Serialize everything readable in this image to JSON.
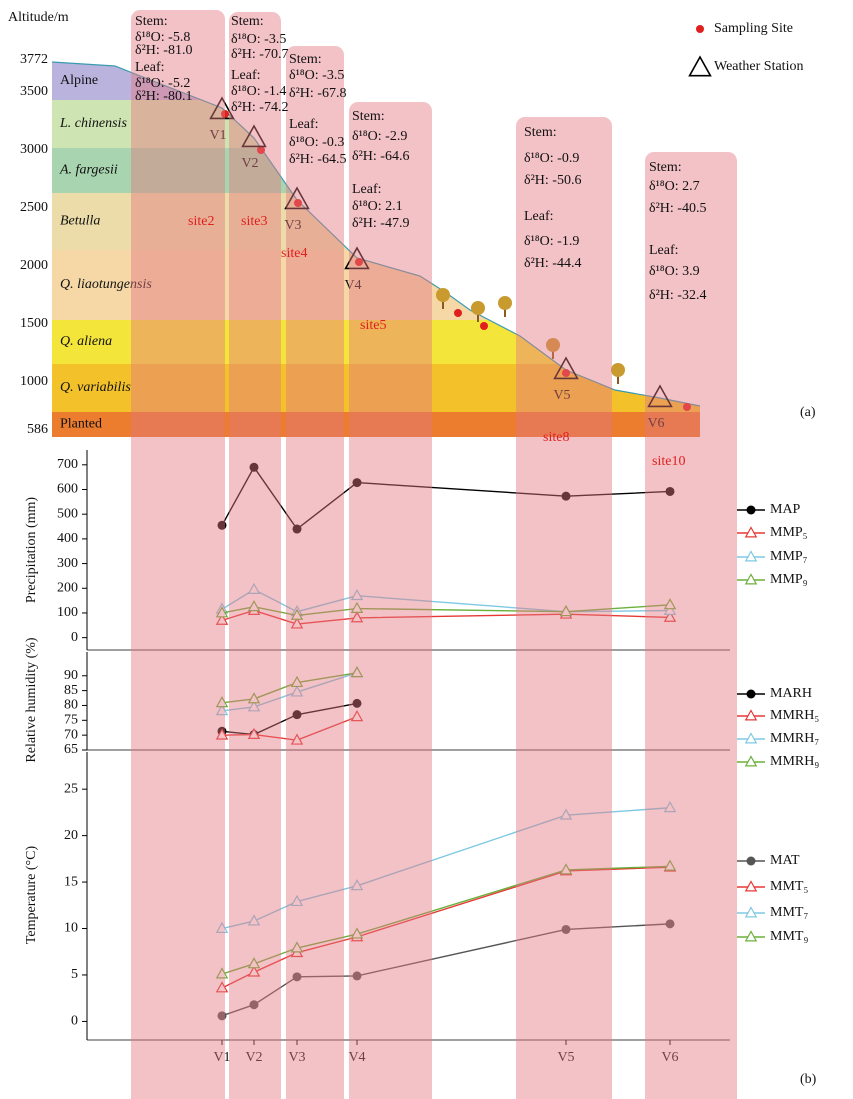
{
  "altitude_panel": {
    "ylabel": "Altitude/m",
    "ylim": [
      586,
      3772
    ],
    "yticks": [
      586,
      1000,
      1500,
      2000,
      2500,
      3000,
      3500,
      3772
    ],
    "zones": [
      {
        "name": "Alpine",
        "color": "#b9b3dd",
        "italic": false
      },
      {
        "name": "L. chinensis",
        "color": "#cfe4b3",
        "italic": true
      },
      {
        "name": "A. fargesii",
        "color": "#a8d5b0",
        "italic": true
      },
      {
        "name": "Betulla",
        "color": "#ecdca9",
        "italic": true
      },
      {
        "name": "Q. liaotungensis",
        "color": "#f5d8a6",
        "italic": true
      },
      {
        "name": "Q. aliena",
        "color": "#f4e53a",
        "italic": true
      },
      {
        "name": "Q. variabilis",
        "color": "#f3c22b",
        "italic": true
      },
      {
        "name": "Planted",
        "color": "#ec7d2f",
        "italic": false
      }
    ],
    "stations": [
      "V1",
      "V2",
      "V3",
      "V4",
      "V5",
      "V6"
    ],
    "sites": [
      "site2",
      "site3",
      "site4",
      "site5",
      "site8",
      "site10"
    ],
    "boxes": [
      {
        "lines": [
          "Stem:",
          "δ¹⁸O: -5.8",
          "δ²H: -81.0",
          "Leaf:",
          "δ¹⁸O: -5.2",
          "δ²H: -80.1"
        ]
      },
      {
        "lines": [
          "Stem:",
          "δ¹⁸O: -3.5",
          "δ²H: -70.7",
          "Leaf:",
          "δ¹⁸O: -1.4",
          "δ²H: -74.2"
        ]
      },
      {
        "lines": [
          "Stem:",
          "δ¹⁸O: -3.5",
          "δ²H: -67.8",
          "Leaf:",
          "δ¹⁸O: -0.3",
          "δ²H: -64.5"
        ]
      },
      {
        "lines": [
          "Stem:",
          "δ¹⁸O: -2.9",
          "δ²H: -64.6",
          "Leaf:",
          "δ¹⁸O: 2.1",
          "δ²H: -47.9"
        ]
      },
      {
        "lines": [
          "Stem:",
          "δ¹⁸O: -0.9",
          "δ²H: -50.6",
          "Leaf:",
          "δ¹⁸O: -1.9",
          "δ²H: -44.4"
        ]
      },
      {
        "lines": [
          "Stem:",
          "δ¹⁸O: 2.7",
          "δ²H: -40.5",
          "Leaf:",
          "δ¹⁸O: 3.9",
          "δ²H: -32.4"
        ]
      }
    ],
    "legend": [
      "Sampling Site",
      "Weather Station"
    ],
    "panel_label": "(a)"
  },
  "chart_data": [
    {
      "type": "line",
      "ylabel": "Precipitation (mm)",
      "ylim": [
        -50,
        760
      ],
      "yticks": [
        0,
        100,
        200,
        300,
        400,
        500,
        600,
        700
      ],
      "series": [
        {
          "name": "MAP",
          "color": "#000000",
          "marker": "circle",
          "values": [
            455,
            690,
            440,
            628,
            573,
            592
          ]
        },
        {
          "name": "MMP₅",
          "color": "#e53935",
          "marker": "triangle",
          "values": [
            70,
            110,
            55,
            80,
            95,
            82
          ]
        },
        {
          "name": "MMP₇",
          "color": "#7ec8e3",
          "marker": "triangle",
          "values": [
            115,
            195,
            105,
            170,
            105,
            110
          ]
        },
        {
          "name": "MMP₉",
          "color": "#6ab03c",
          "marker": "triangle",
          "values": [
            100,
            125,
            90,
            118,
            105,
            133
          ]
        }
      ]
    },
    {
      "type": "line",
      "ylabel": "Relative humidity (%)",
      "ylim": [
        65,
        98
      ],
      "yticks": [
        65,
        70,
        75,
        80,
        85,
        90
      ],
      "series": [
        {
          "name": "MARH",
          "color": "#000000",
          "marker": "circle",
          "values": [
            71.3,
            70.2,
            76.9,
            80.7,
            null,
            null
          ]
        },
        {
          "name": "MMRH₅",
          "color": "#e53935",
          "marker": "triangle",
          "values": [
            70.0,
            70.2,
            68.3,
            76.2,
            null,
            null
          ]
        },
        {
          "name": "MMRH₇",
          "color": "#7ec8e3",
          "marker": "triangle",
          "values": [
            78.2,
            79.5,
            84.5,
            91.0,
            null,
            null
          ]
        },
        {
          "name": "MMRH₉",
          "color": "#6ab03c",
          "marker": "triangle",
          "values": [
            80.9,
            82.2,
            87.7,
            91.0,
            null,
            null
          ]
        }
      ]
    },
    {
      "type": "line",
      "ylabel": "Temperature (°C)",
      "ylim": [
        -2,
        29
      ],
      "yticks": [
        0,
        5,
        10,
        15,
        20,
        25
      ],
      "categories": [
        "V1",
        "V2",
        "V3",
        "V4",
        "V5",
        "V6"
      ],
      "panel_label": "(b)",
      "series": [
        {
          "name": "MAT",
          "color": "#555555",
          "marker": "circle",
          "values": [
            0.6,
            1.8,
            4.8,
            4.9,
            9.9,
            10.5
          ]
        },
        {
          "name": "MMT₅",
          "color": "#e53935",
          "marker": "triangle",
          "values": [
            3.6,
            5.3,
            7.4,
            9.1,
            16.2,
            16.6
          ]
        },
        {
          "name": "MMT₇",
          "color": "#7ec8e3",
          "marker": "triangle",
          "values": [
            10.0,
            10.8,
            12.9,
            14.6,
            22.2,
            23.0
          ]
        },
        {
          "name": "MMT₉",
          "color": "#6ab03c",
          "marker": "triangle",
          "values": [
            5.1,
            6.2,
            7.9,
            9.4,
            16.3,
            16.7
          ]
        }
      ]
    }
  ]
}
